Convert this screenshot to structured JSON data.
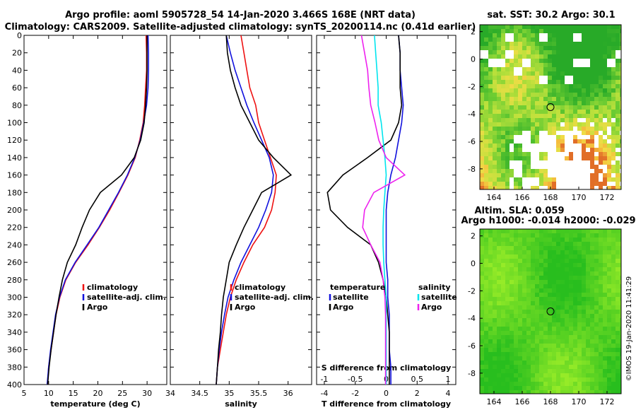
{
  "title_line1": "Argo profile: aoml 5905728_54 14-Jan-2020 3.466S 168E (NRT data)",
  "title_line2": "Climatology: CARS2009. Satellite-adjusted climatology: synTS_20200114.nc (0.41d earlier)",
  "colors": {
    "climatology": "#ee1111",
    "satellite": "#1111dd",
    "argo": "#000000",
    "sal_sat": "#00e5ee",
    "sal_argo": "#ee22ee"
  },
  "chart_data": [
    {
      "type": "line",
      "id": "temperature",
      "xlabel": "temperature (deg C)",
      "xlim": [
        5,
        34
      ],
      "ylim": [
        400,
        0
      ],
      "xticks": [
        5,
        10,
        15,
        20,
        25,
        30
      ],
      "xtick_labels": [
        "5",
        "10",
        "15",
        "20",
        "25",
        "30"
      ],
      "yticks": [
        0,
        20,
        40,
        60,
        80,
        100,
        120,
        140,
        160,
        180,
        200,
        220,
        240,
        260,
        280,
        300,
        320,
        340,
        360,
        380,
        400
      ],
      "ytick_labels": [
        "0",
        "20",
        "40",
        "60",
        "80",
        "100",
        "120",
        "140",
        "160",
        "180",
        "200",
        "220",
        "240",
        "260",
        "280",
        "300",
        "320",
        "340",
        "360",
        "380",
        "400"
      ],
      "legend": [
        "climatology",
        "satellite-adj. clim.",
        "Argo"
      ],
      "series": [
        {
          "name": "climatology",
          "key": "climatology",
          "x": [
            29.8,
            29.9,
            29.9,
            29.7,
            29.5,
            29.2,
            28.5,
            27.6,
            26.1,
            24.3,
            22.4,
            20.3,
            18.0,
            15.5,
            13.5,
            12.3,
            11.5,
            11.0,
            10.5,
            10.0,
            9.8
          ],
          "y": [
            0,
            20,
            40,
            60,
            80,
            100,
            120,
            140,
            160,
            180,
            200,
            220,
            240,
            260,
            280,
            300,
            320,
            340,
            360,
            380,
            400
          ]
        },
        {
          "name": "satellite-adj. clim.",
          "key": "satellite",
          "x": [
            30.2,
            30.3,
            30.3,
            30.2,
            29.9,
            29.3,
            28.6,
            27.5,
            26.0,
            24.2,
            22.2,
            20.2,
            17.8,
            15.4,
            13.4,
            12.2,
            11.4,
            10.9,
            10.4,
            10.0,
            9.7
          ],
          "y": [
            0,
            20,
            40,
            60,
            80,
            100,
            120,
            140,
            160,
            180,
            200,
            220,
            240,
            260,
            280,
            300,
            320,
            340,
            360,
            380,
            400
          ]
        },
        {
          "name": "Argo",
          "key": "argo",
          "x": [
            30.0,
            30.0,
            30.0,
            29.9,
            29.7,
            29.4,
            28.7,
            27.4,
            24.8,
            20.5,
            18.3,
            16.8,
            15.5,
            13.8,
            12.8,
            12.1,
            11.5,
            11.0,
            10.5,
            10.1,
            9.8
          ],
          "y": [
            0,
            20,
            40,
            60,
            80,
            100,
            120,
            140,
            160,
            180,
            200,
            220,
            240,
            260,
            280,
            300,
            320,
            340,
            360,
            380,
            400
          ]
        }
      ]
    },
    {
      "type": "line",
      "id": "salinity",
      "xlabel": "salinity",
      "xlim": [
        34,
        36.4
      ],
      "ylim": [
        400,
        0
      ],
      "xticks": [
        34,
        34.5,
        35,
        35.5,
        36
      ],
      "xtick_labels": [
        "34",
        "34.5",
        "35",
        "35.5",
        "36"
      ],
      "legend": [
        "climatology",
        "satellite-adj. clim.",
        "Argo"
      ],
      "series": [
        {
          "name": "climatology",
          "key": "climatology",
          "x": [
            35.2,
            35.25,
            35.3,
            35.35,
            35.45,
            35.5,
            35.6,
            35.7,
            35.8,
            35.78,
            35.72,
            35.6,
            35.4,
            35.25,
            35.12,
            35.02,
            34.95,
            34.9,
            34.85,
            34.8,
            34.78
          ],
          "y": [
            0,
            20,
            40,
            60,
            80,
            100,
            120,
            140,
            160,
            180,
            200,
            220,
            240,
            260,
            280,
            300,
            320,
            340,
            360,
            380,
            400
          ]
        },
        {
          "name": "satellite-adj. clim.",
          "key": "satellite",
          "x": [
            34.95,
            35.02,
            35.1,
            35.2,
            35.3,
            35.42,
            35.55,
            35.68,
            35.75,
            35.72,
            35.62,
            35.5,
            35.35,
            35.2,
            35.08,
            34.98,
            34.92,
            34.87,
            34.83,
            34.8,
            34.78
          ],
          "y": [
            0,
            20,
            40,
            60,
            80,
            100,
            120,
            140,
            160,
            180,
            200,
            220,
            240,
            260,
            280,
            300,
            320,
            340,
            360,
            380,
            400
          ]
        },
        {
          "name": "Argo",
          "key": "argo",
          "x": [
            34.95,
            34.97,
            35.02,
            35.1,
            35.2,
            35.35,
            35.5,
            35.75,
            36.05,
            35.55,
            35.4,
            35.25,
            35.12,
            35.0,
            34.95,
            34.9,
            34.87,
            34.85,
            34.82,
            34.8,
            34.78
          ],
          "y": [
            0,
            20,
            40,
            60,
            80,
            100,
            120,
            140,
            160,
            180,
            200,
            220,
            240,
            260,
            280,
            300,
            320,
            340,
            360,
            380,
            400
          ]
        }
      ]
    },
    {
      "type": "line",
      "id": "difference",
      "xlabel": "T difference from climatology",
      "xlabel_top": "S difference from climatology",
      "xlim": [
        -4.5,
        4.5
      ],
      "ylim": [
        400,
        0
      ],
      "xticks": [
        -4,
        -2,
        0,
        2,
        4
      ],
      "xtick_labels": [
        "-4",
        "-2",
        "0",
        "2",
        "4"
      ],
      "xticks_S": [
        -1,
        -0.5,
        0,
        0.5,
        1
      ],
      "xtick_labels_S": [
        "-1",
        "-0.5",
        "0",
        "0.5",
        "1"
      ],
      "legend_T": {
        "title": "temperature",
        "items": [
          "satellite",
          "Argo"
        ]
      },
      "legend_S": {
        "title": "salinity",
        "items": [
          "satellite",
          "Argo"
        ]
      },
      "series": [
        {
          "name": "temperature satellite",
          "key": "satellite",
          "x": [
            0.8,
            0.9,
            0.9,
            1.0,
            1.1,
            1.0,
            0.8,
            0.6,
            0.3,
            0.1,
            0.0,
            0.0,
            0.0,
            0.0,
            0.1,
            0.1,
            0.2,
            0.2,
            0.2,
            0.3,
            0.3
          ],
          "y": [
            0,
            20,
            40,
            60,
            80,
            100,
            120,
            140,
            160,
            180,
            200,
            220,
            240,
            260,
            280,
            300,
            320,
            340,
            360,
            380,
            400
          ]
        },
        {
          "name": "temperature Argo",
          "key": "argo",
          "x": [
            0.8,
            0.9,
            0.9,
            0.9,
            1.0,
            0.8,
            0.3,
            -1.2,
            -2.8,
            -3.8,
            -3.6,
            -2.5,
            -1.0,
            -0.5,
            -0.2,
            0.0,
            0.1,
            0.2,
            0.2,
            0.2,
            0.2
          ],
          "y": [
            0,
            20,
            40,
            60,
            80,
            100,
            120,
            140,
            160,
            180,
            200,
            220,
            240,
            260,
            280,
            300,
            320,
            340,
            360,
            380,
            400
          ]
        },
        {
          "name": "salinity satellite",
          "key": "sal_sat",
          "x": [
            -0.19,
            -0.17,
            -0.15,
            -0.13,
            -0.13,
            -0.08,
            -0.05,
            -0.02,
            0.0,
            -0.02,
            -0.04,
            -0.05,
            -0.05,
            -0.04,
            -0.02,
            0.0,
            0.0,
            0.0,
            0.0,
            0.0,
            0.0
          ],
          "y": [
            0,
            20,
            40,
            60,
            80,
            100,
            120,
            140,
            160,
            180,
            200,
            220,
            240,
            260,
            280,
            300,
            320,
            340,
            360,
            380,
            400
          ]
        },
        {
          "name": "salinity Argo",
          "key": "sal_argo",
          "x": [
            -0.4,
            -0.35,
            -0.3,
            -0.28,
            -0.25,
            -0.18,
            -0.12,
            0.0,
            0.3,
            -0.2,
            -0.35,
            -0.38,
            -0.25,
            -0.1,
            -0.05,
            -0.02,
            -0.01,
            -0.01,
            -0.01,
            -0.01,
            -0.01
          ],
          "y": [
            0,
            20,
            40,
            60,
            80,
            100,
            120,
            140,
            160,
            180,
            200,
            220,
            240,
            260,
            280,
            300,
            320,
            340,
            360,
            380,
            400
          ]
        }
      ]
    },
    {
      "type": "heatmap",
      "id": "sst_map",
      "title": "sat. SST: 30.2 Argo: 30.1",
      "xlim": [
        163,
        173
      ],
      "ylim": [
        -9.5,
        2.5
      ],
      "xticks": [
        164,
        166,
        168,
        170,
        172
      ],
      "xtick_labels": [
        "164",
        "166",
        "168",
        "170",
        "172"
      ],
      "yticks": [
        2,
        0,
        -2,
        -4,
        -6,
        -8
      ],
      "ytick_labels": [
        "2",
        "0",
        "-2",
        "-4",
        "-6",
        "-8"
      ],
      "marker": {
        "lon": 168.0,
        "lat": -3.5
      }
    },
    {
      "type": "heatmap",
      "id": "sla_map",
      "title_line1": "Altim. SLA: 0.059",
      "title_line2": "Argo h1000: -0.014 h2000: -0.029",
      "xlim": [
        163,
        173
      ],
      "ylim": [
        -9.5,
        2.5
      ],
      "xticks": [
        164,
        166,
        168,
        170,
        172
      ],
      "xtick_labels": [
        "164",
        "166",
        "168",
        "170",
        "172"
      ],
      "yticks": [
        2,
        0,
        -2,
        -4,
        -6,
        -8
      ],
      "ytick_labels": [
        "2",
        "0",
        "-2",
        "-4",
        "-6",
        "-8"
      ],
      "marker": {
        "lon": 168.0,
        "lat": -3.5
      }
    }
  ],
  "credit": "©IMOS 19-Jan-2020 11:41:29"
}
